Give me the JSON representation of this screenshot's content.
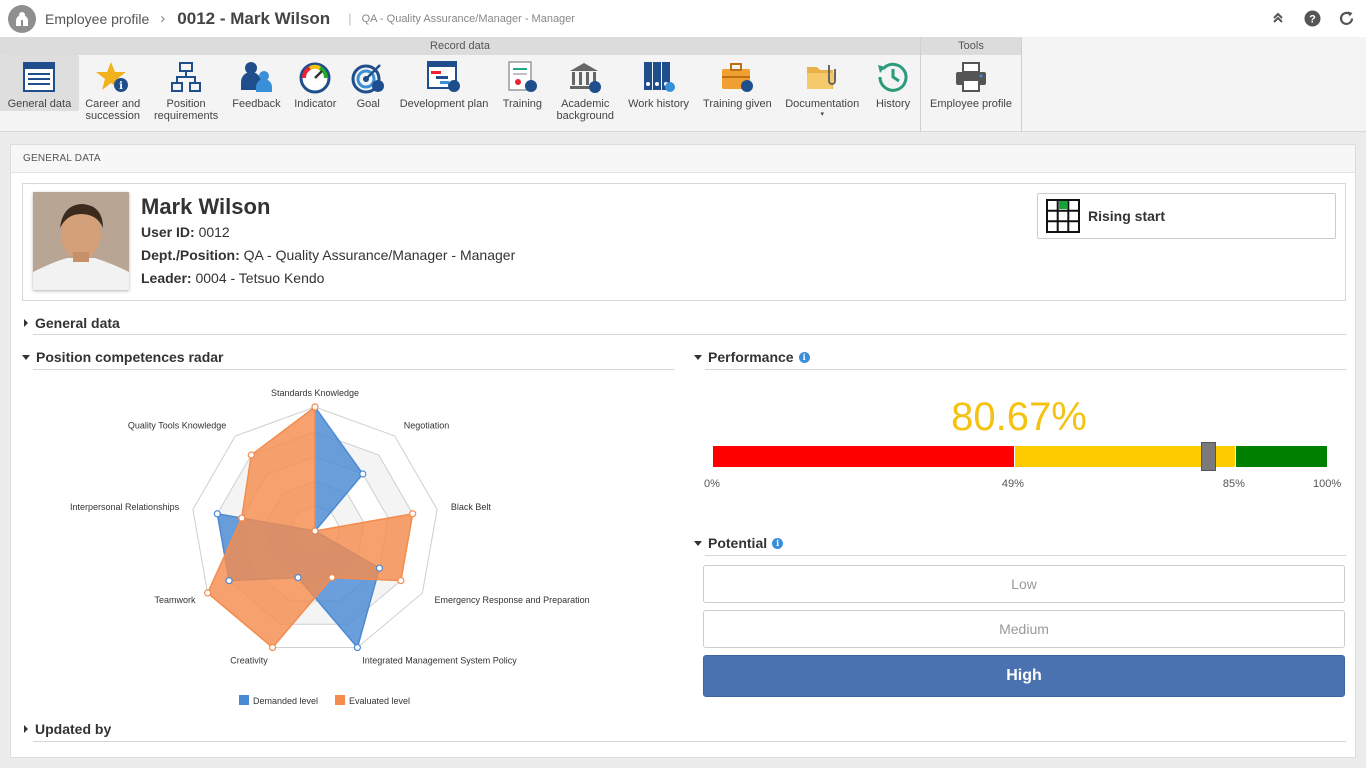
{
  "titlebar": {
    "breadcrumb": "Employee profile",
    "separator": "›",
    "record_title": "0012 - Mark Wilson",
    "pipe": "|",
    "record_subtitle": "QA - Quality Assurance/Manager - Manager"
  },
  "ribbon": {
    "groups": [
      {
        "label": "Record data"
      },
      {
        "label": "Tools"
      }
    ],
    "items": [
      {
        "label": "General data",
        "icon": "general-data-icon"
      },
      {
        "label": "Career and\nsuccession",
        "icon": "star-info-icon"
      },
      {
        "label": "Position\nrequirements",
        "icon": "org-chart-icon"
      },
      {
        "label": "Feedback",
        "icon": "feedback-icon"
      },
      {
        "label": "Indicator",
        "icon": "gauge-icon"
      },
      {
        "label": "Goal",
        "icon": "target-icon"
      },
      {
        "label": "Development plan",
        "icon": "gantt-icon"
      },
      {
        "label": "Training",
        "icon": "certificate-icon"
      },
      {
        "label": "Academic\nbackground",
        "icon": "academy-icon"
      },
      {
        "label": "Work history",
        "icon": "binders-icon"
      },
      {
        "label": "Training given",
        "icon": "briefcase-icon"
      },
      {
        "label": "Documentation",
        "icon": "folder-clip-icon",
        "caret": "▾"
      },
      {
        "label": "History",
        "icon": "history-icon"
      },
      {
        "label": "Employee profile",
        "icon": "printer-icon"
      }
    ]
  },
  "panel": {
    "title": "GENERAL DATA"
  },
  "profile": {
    "name": "Mark Wilson",
    "user_id_label": "User ID:",
    "user_id": "0012",
    "dept_label": "Dept./Position:",
    "dept": "QA - Quality Assurance/Manager - Manager",
    "leader_label": "Leader:",
    "leader": "0004 - Tetsuo Kendo",
    "rising_label": "Rising start"
  },
  "sections": {
    "general_data": "General data",
    "radar": "Position competences radar",
    "performance": "Performance",
    "potential": "Potential",
    "updated_by": "Updated by"
  },
  "performance": {
    "value_text": "80.67%",
    "value": 80.67,
    "ticks": [
      "0%",
      "49%",
      "85%",
      "100%"
    ],
    "colors": {
      "low": "#ff0000",
      "mid": "#ffcc00",
      "high": "#008000"
    }
  },
  "potential": {
    "options": [
      "Low",
      "Medium",
      "High"
    ],
    "selected": "High"
  },
  "chart_data": {
    "type": "radar",
    "axes": [
      "Standards Knowledge",
      "Negotiation",
      "Black Belt",
      "Emergency Response and Preparation",
      "Integrated Management System Policy",
      "Creativity",
      "Teamwork",
      "Interpersonal Relationships",
      "Quality Tools Knowledge"
    ],
    "max": 5,
    "series": [
      {
        "name": "Demanded level",
        "color": "#4a8ad4",
        "values": [
          5,
          3,
          0,
          3,
          5,
          2,
          4,
          4,
          0
        ]
      },
      {
        "name": "Evaluated level",
        "color": "#f48c4e",
        "values": [
          5,
          0,
          4,
          4,
          2,
          5,
          5,
          3,
          4
        ]
      }
    ]
  }
}
